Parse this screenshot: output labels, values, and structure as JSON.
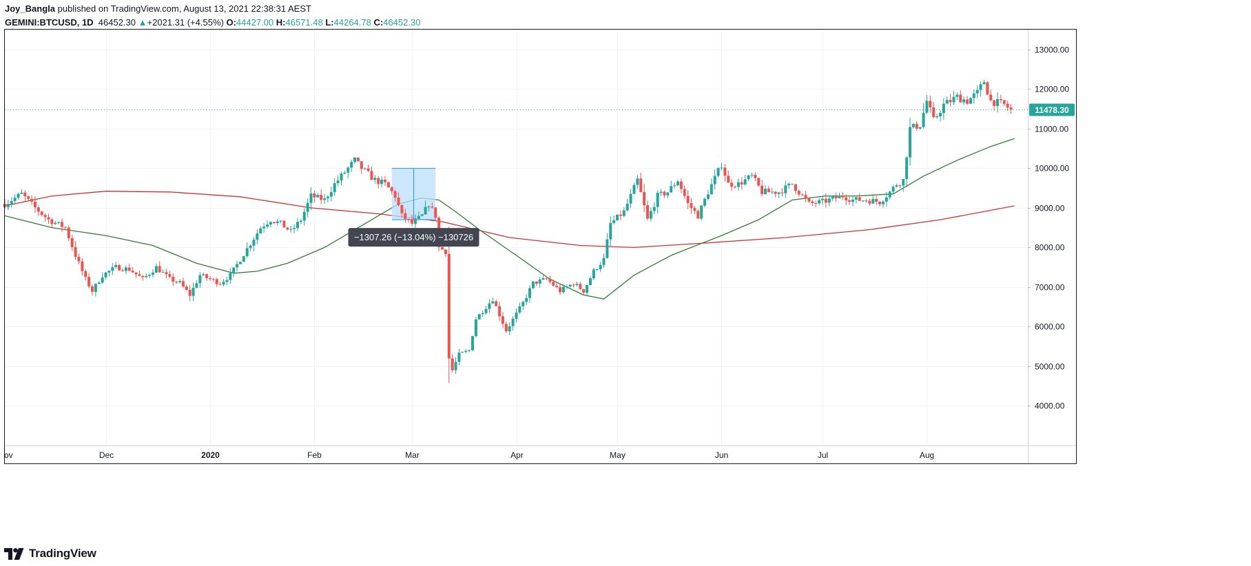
{
  "header": {
    "author": "Joy_Bangla",
    "published": "published on TradingView.com, August 13, 2021 22:38:31 AEST",
    "symbol": "GEMINI:BTCUSD, 1D",
    "last": "46452.30",
    "change": "+2021.31 (+4.55%)",
    "open_label": "O:",
    "open": "44427.00",
    "high_label": "H:",
    "high": "46571.48",
    "low_label": "L:",
    "low": "44264.78",
    "close_label": "C:",
    "close": "46452.30"
  },
  "brand": {
    "name": "TradingView"
  },
  "colors": {
    "up": "#26a69a",
    "down": "#ef5350",
    "ma_fast": "#2e7d32",
    "ma_slow": "#d32f2f",
    "measure_fill": "#bbdefb",
    "measure_line": "#2196f3",
    "tooltip_bg": "#434651",
    "price_tag": "#26a69a"
  },
  "chart_data": {
    "type": "candlestick",
    "x_ticks": [
      "ov",
      "Dec",
      "2020",
      "Feb",
      "Mar",
      "Apr",
      "May",
      "Jun",
      "Jul",
      "Aug"
    ],
    "y_ticks": [
      4000,
      5000,
      6000,
      7000,
      8000,
      9000,
      10000,
      11000,
      12000,
      13000
    ],
    "y_tick_labels": [
      "4000.00",
      "5000.00",
      "6000.00",
      "7000.00",
      "8000.00",
      "9000.00",
      "10000.00",
      "11000.00",
      "12000.00",
      "13000.00"
    ],
    "ylim": [
      3000,
      13500
    ],
    "xlim": [
      "2019-11-01",
      "2020-08-31"
    ],
    "current_price": 11478.3,
    "current_price_label": "11478.30",
    "anchors": [
      {
        "date": "2019-11-01",
        "price": 9100
      },
      {
        "date": "2019-11-06",
        "price": 9350
      },
      {
        "date": "2019-11-10",
        "price": 9000
      },
      {
        "date": "2019-11-14",
        "price": 8700
      },
      {
        "date": "2019-11-19",
        "price": 8500
      },
      {
        "date": "2019-11-22",
        "price": 7800
      },
      {
        "date": "2019-11-25",
        "price": 7200
      },
      {
        "date": "2019-11-27",
        "price": 6900
      },
      {
        "date": "2019-11-30",
        "price": 7300
      },
      {
        "date": "2019-12-04",
        "price": 7500
      },
      {
        "date": "2019-12-08",
        "price": 7450
      },
      {
        "date": "2019-12-12",
        "price": 7200
      },
      {
        "date": "2019-12-16",
        "price": 7500
      },
      {
        "date": "2019-12-20",
        "price": 7200
      },
      {
        "date": "2019-12-23",
        "price": 7100
      },
      {
        "date": "2019-12-26",
        "price": 6800
      },
      {
        "date": "2019-12-29",
        "price": 7300
      },
      {
        "date": "2020-01-01",
        "price": 7200
      },
      {
        "date": "2020-01-04",
        "price": 7100
      },
      {
        "date": "2020-01-07",
        "price": 7300
      },
      {
        "date": "2020-01-10",
        "price": 7700
      },
      {
        "date": "2020-01-13",
        "price": 8100
      },
      {
        "date": "2020-01-16",
        "price": 8500
      },
      {
        "date": "2020-01-19",
        "price": 8700
      },
      {
        "date": "2020-01-22",
        "price": 8600
      },
      {
        "date": "2020-01-25",
        "price": 8400
      },
      {
        "date": "2020-01-28",
        "price": 8700
      },
      {
        "date": "2020-01-31",
        "price": 9300
      },
      {
        "date": "2020-02-04",
        "price": 9200
      },
      {
        "date": "2020-02-07",
        "price": 9600
      },
      {
        "date": "2020-02-10",
        "price": 9900
      },
      {
        "date": "2020-02-13",
        "price": 10200
      },
      {
        "date": "2020-02-15",
        "price": 10000
      },
      {
        "date": "2020-02-19",
        "price": 9700
      },
      {
        "date": "2020-02-22",
        "price": 9600
      },
      {
        "date": "2020-02-25",
        "price": 9300
      },
      {
        "date": "2020-02-27",
        "price": 8800
      },
      {
        "date": "2020-03-01",
        "price": 8600
      },
      {
        "date": "2020-03-04",
        "price": 8800
      },
      {
        "date": "2020-03-06",
        "price": 9100
      },
      {
        "date": "2020-03-08",
        "price": 8800
      },
      {
        "date": "2020-03-09",
        "price": 8000
      },
      {
        "date": "2020-03-11",
        "price": 7900
      },
      {
        "date": "2020-03-12",
        "price": 5200
      },
      {
        "date": "2020-03-13",
        "price": 4900
      },
      {
        "date": "2020-03-15",
        "price": 5300
      },
      {
        "date": "2020-03-18",
        "price": 5400
      },
      {
        "date": "2020-03-20",
        "price": 6200
      },
      {
        "date": "2020-03-23",
        "price": 6500
      },
      {
        "date": "2020-03-25",
        "price": 6700
      },
      {
        "date": "2020-03-29",
        "price": 5900
      },
      {
        "date": "2020-04-03",
        "price": 6600
      },
      {
        "date": "2020-04-06",
        "price": 7100
      },
      {
        "date": "2020-04-10",
        "price": 7200
      },
      {
        "date": "2020-04-14",
        "price": 6900
      },
      {
        "date": "2020-04-18",
        "price": 7100
      },
      {
        "date": "2020-04-21",
        "price": 6900
      },
      {
        "date": "2020-04-24",
        "price": 7400
      },
      {
        "date": "2020-04-27",
        "price": 7700
      },
      {
        "date": "2020-04-29",
        "price": 8600
      },
      {
        "date": "2020-05-03",
        "price": 8900
      },
      {
        "date": "2020-05-07",
        "price": 9700
      },
      {
        "date": "2020-05-10",
        "price": 8700
      },
      {
        "date": "2020-05-13",
        "price": 9300
      },
      {
        "date": "2020-05-16",
        "price": 9400
      },
      {
        "date": "2020-05-19",
        "price": 9700
      },
      {
        "date": "2020-05-22",
        "price": 9100
      },
      {
        "date": "2020-05-25",
        "price": 8800
      },
      {
        "date": "2020-05-28",
        "price": 9400
      },
      {
        "date": "2020-06-01",
        "price": 10100
      },
      {
        "date": "2020-06-03",
        "price": 9600
      },
      {
        "date": "2020-06-06",
        "price": 9600
      },
      {
        "date": "2020-06-10",
        "price": 9800
      },
      {
        "date": "2020-06-13",
        "price": 9400
      },
      {
        "date": "2020-06-18",
        "price": 9400
      },
      {
        "date": "2020-06-22",
        "price": 9600
      },
      {
        "date": "2020-06-27",
        "price": 9100
      },
      {
        "date": "2020-07-01",
        "price": 9150
      },
      {
        "date": "2020-07-07",
        "price": 9300
      },
      {
        "date": "2020-07-10",
        "price": 9200
      },
      {
        "date": "2020-07-14",
        "price": 9200
      },
      {
        "date": "2020-07-18",
        "price": 9150
      },
      {
        "date": "2020-07-21",
        "price": 9400
      },
      {
        "date": "2020-07-23",
        "price": 9600
      },
      {
        "date": "2020-07-25",
        "price": 9700
      },
      {
        "date": "2020-07-27",
        "price": 11000
      },
      {
        "date": "2020-07-30",
        "price": 11100
      },
      {
        "date": "2020-08-01",
        "price": 11700
      },
      {
        "date": "2020-08-03",
        "price": 11200
      },
      {
        "date": "2020-08-06",
        "price": 11600
      },
      {
        "date": "2020-08-10",
        "price": 11800
      },
      {
        "date": "2020-08-13",
        "price": 11700
      },
      {
        "date": "2020-08-16",
        "price": 11900
      },
      {
        "date": "2020-08-18",
        "price": 12200
      },
      {
        "date": "2020-08-20",
        "price": 11700
      },
      {
        "date": "2020-08-24",
        "price": 11600
      },
      {
        "date": "2020-08-26",
        "price": 11478
      }
    ],
    "ma_fast": [
      {
        "date": "2019-11-01",
        "price": 8800
      },
      {
        "date": "2019-11-15",
        "price": 8500
      },
      {
        "date": "2019-12-01",
        "price": 8300
      },
      {
        "date": "2019-12-15",
        "price": 8050
      },
      {
        "date": "2019-12-28",
        "price": 7600
      },
      {
        "date": "2020-01-08",
        "price": 7350
      },
      {
        "date": "2020-01-15",
        "price": 7400
      },
      {
        "date": "2020-01-24",
        "price": 7600
      },
      {
        "date": "2020-02-04",
        "price": 8000
      },
      {
        "date": "2020-02-16",
        "price": 8600
      },
      {
        "date": "2020-02-26",
        "price": 9100
      },
      {
        "date": "2020-03-04",
        "price": 9250
      },
      {
        "date": "2020-03-09",
        "price": 9200
      },
      {
        "date": "2020-03-14",
        "price": 8900
      },
      {
        "date": "2020-03-21",
        "price": 8450
      },
      {
        "date": "2020-04-01",
        "price": 7800
      },
      {
        "date": "2020-04-11",
        "price": 7200
      },
      {
        "date": "2020-04-21",
        "price": 6800
      },
      {
        "date": "2020-04-27",
        "price": 6700
      },
      {
        "date": "2020-05-06",
        "price": 7300
      },
      {
        "date": "2020-05-17",
        "price": 7800
      },
      {
        "date": "2020-06-01",
        "price": 8300
      },
      {
        "date": "2020-06-12",
        "price": 8700
      },
      {
        "date": "2020-06-22",
        "price": 9200
      },
      {
        "date": "2020-07-02",
        "price": 9300
      },
      {
        "date": "2020-07-11",
        "price": 9300
      },
      {
        "date": "2020-07-22",
        "price": 9350
      },
      {
        "date": "2020-07-31",
        "price": 9800
      },
      {
        "date": "2020-08-10",
        "price": 10200
      },
      {
        "date": "2020-08-20",
        "price": 10550
      },
      {
        "date": "2020-08-27",
        "price": 10750
      }
    ],
    "ma_slow": [
      {
        "date": "2019-11-01",
        "price": 9050
      },
      {
        "date": "2019-11-15",
        "price": 9300
      },
      {
        "date": "2019-12-01",
        "price": 9420
      },
      {
        "date": "2019-12-20",
        "price": 9400
      },
      {
        "date": "2020-01-10",
        "price": 9280
      },
      {
        "date": "2020-01-31",
        "price": 9000
      },
      {
        "date": "2020-02-20",
        "price": 8850
      },
      {
        "date": "2020-03-10",
        "price": 8650
      },
      {
        "date": "2020-03-30",
        "price": 8250
      },
      {
        "date": "2020-04-20",
        "price": 8050
      },
      {
        "date": "2020-05-06",
        "price": 8000
      },
      {
        "date": "2020-05-25",
        "price": 8100
      },
      {
        "date": "2020-06-20",
        "price": 8250
      },
      {
        "date": "2020-07-15",
        "price": 8450
      },
      {
        "date": "2020-08-05",
        "price": 8700
      },
      {
        "date": "2020-08-27",
        "price": 9050
      }
    ],
    "measure": {
      "start_date": "2020-02-24",
      "end_date": "2020-03-08",
      "top_price": 10000,
      "bottom_price": 8700,
      "label": "−1307.26 (−13.04%) −130726"
    }
  }
}
